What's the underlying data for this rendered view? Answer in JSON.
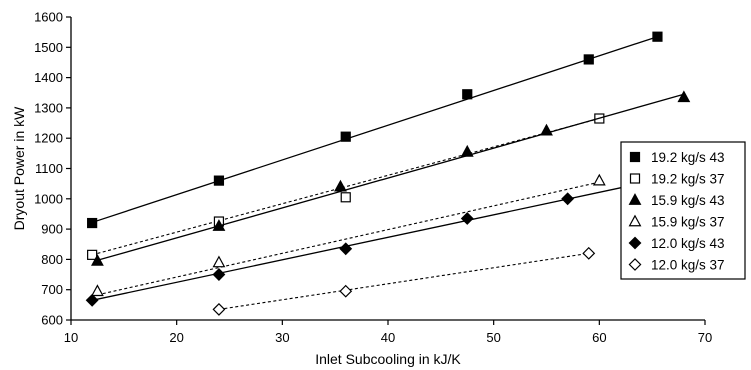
{
  "chart_data": {
    "type": "scatter",
    "title": "",
    "xlabel": "Inlet Subcooling in kJ/K",
    "ylabel": "Dryout Power in kW",
    "xlim": [
      10,
      70
    ],
    "ylim": [
      600,
      1600
    ],
    "xticks": [
      10,
      20,
      30,
      40,
      50,
      60,
      70
    ],
    "yticks": [
      600,
      700,
      800,
      900,
      1000,
      1100,
      1200,
      1300,
      1400,
      1500,
      1600
    ],
    "grid": false,
    "legend_position": "right",
    "series": [
      {
        "name": "19.2 kg/s 43",
        "marker": "square",
        "filled": true,
        "line": "solid",
        "x": [
          12,
          24,
          36,
          47.5,
          59,
          65.5
        ],
        "y": [
          920,
          1060,
          1205,
          1345,
          1460,
          1535
        ],
        "trend": [
          [
            12,
            922
          ],
          [
            65.5,
            1535
          ]
        ]
      },
      {
        "name": "19.2 kg/s 37",
        "marker": "square",
        "filled": false,
        "line": "dashed",
        "x": [
          12,
          24,
          36,
          60
        ],
        "y": [
          815,
          925,
          1005,
          1265
        ],
        "trend": [
          [
            12,
            815
          ],
          [
            60,
            1265
          ]
        ]
      },
      {
        "name": "15.9 kg/s 43",
        "marker": "triangle",
        "filled": true,
        "line": "solid",
        "x": [
          12.5,
          24,
          35.5,
          47.5,
          55,
          68
        ],
        "y": [
          795,
          910,
          1040,
          1155,
          1225,
          1335
        ],
        "trend": [
          [
            12.5,
            797
          ],
          [
            68,
            1345
          ]
        ]
      },
      {
        "name": "15.9 kg/s 37",
        "marker": "triangle",
        "filled": false,
        "line": "dashed",
        "x": [
          12.5,
          24,
          60
        ],
        "y": [
          695,
          790,
          1060
        ],
        "trend": [
          [
            12.5,
            683
          ],
          [
            60,
            1055
          ]
        ]
      },
      {
        "name": "12.0 kg/s 43",
        "marker": "diamond",
        "filled": true,
        "line": "solid",
        "x": [
          12,
          24,
          36,
          47.5,
          57
        ],
        "y": [
          665,
          750,
          835,
          935,
          1000
        ],
        "trend": [
          [
            12,
            665
          ],
          [
            62.5,
            1040
          ]
        ]
      },
      {
        "name": "12.0 kg/s 37",
        "marker": "diamond",
        "filled": false,
        "line": "dashed",
        "x": [
          24,
          36,
          59
        ],
        "y": [
          635,
          695,
          820
        ],
        "trend": [
          [
            24,
            635
          ],
          [
            59,
            820
          ]
        ]
      }
    ]
  }
}
